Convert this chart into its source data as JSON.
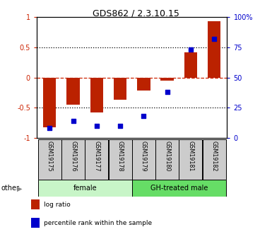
{
  "title": "GDS862 / 2.3.10.15",
  "samples": [
    "GSM19175",
    "GSM19176",
    "GSM19177",
    "GSM19178",
    "GSM19179",
    "GSM19180",
    "GSM19181",
    "GSM19182"
  ],
  "log_ratio": [
    -0.82,
    -0.45,
    -0.58,
    -0.37,
    -0.22,
    -0.05,
    0.42,
    0.93
  ],
  "percentile_rank": [
    8,
    14,
    10,
    10,
    18,
    38,
    73,
    82
  ],
  "groups": [
    {
      "label": "female",
      "start": 0,
      "end": 4,
      "color": "#c8f5c8"
    },
    {
      "label": "GH-treated male",
      "start": 4,
      "end": 8,
      "color": "#66dd66"
    }
  ],
  "bar_color": "#bb2200",
  "dot_color": "#0000cc",
  "ylim_left": [
    -1,
    1
  ],
  "ylim_right": [
    0,
    100
  ],
  "yticks_left": [
    -1,
    -0.5,
    0,
    0.5,
    1
  ],
  "yticks_right": [
    0,
    25,
    50,
    75,
    100
  ],
  "ytick_labels_left": [
    "-1",
    "-0.5",
    "0",
    "0.5",
    "1"
  ],
  "ytick_labels_right": [
    "0",
    "25",
    "50",
    "75",
    "100%"
  ],
  "hlines_dotted": [
    -0.5,
    0.5
  ],
  "hline_dashed": 0,
  "legend_items": [
    {
      "color": "#bb2200",
      "label": "log ratio"
    },
    {
      "color": "#0000cc",
      "label": "percentile rank within the sample"
    }
  ],
  "bar_width": 0.55,
  "other_label": "other"
}
